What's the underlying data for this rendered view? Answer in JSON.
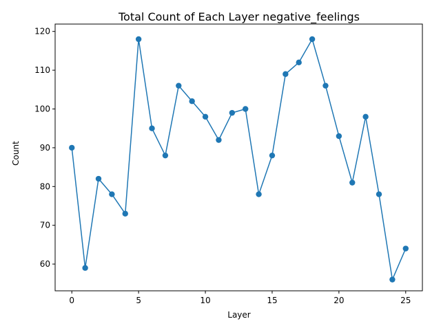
{
  "chart_data": {
    "type": "line",
    "title": "Total Count of Each Layer negative_feelings",
    "xlabel": "Layer",
    "ylabel": "Count",
    "x": [
      0,
      1,
      2,
      3,
      4,
      5,
      6,
      7,
      8,
      9,
      10,
      11,
      12,
      13,
      14,
      15,
      16,
      17,
      18,
      19,
      20,
      21,
      22,
      23,
      24,
      25
    ],
    "series": [
      {
        "values": [
          90,
          59,
          82,
          78,
          73,
          118,
          95,
          88,
          106,
          102,
          98,
          92,
          99,
          100,
          78,
          88,
          109,
          112,
          118,
          106,
          93,
          81,
          98,
          78,
          56,
          64
        ]
      }
    ],
    "xlim": [
      -1.25,
      26.25
    ],
    "ylim": [
      53.1,
      121.9
    ],
    "xticks": [
      0,
      5,
      10,
      15,
      20,
      25
    ],
    "yticks": [
      60,
      70,
      80,
      90,
      100,
      110,
      120
    ],
    "grid": false,
    "marker": "circle",
    "color": "#1f77b4"
  }
}
